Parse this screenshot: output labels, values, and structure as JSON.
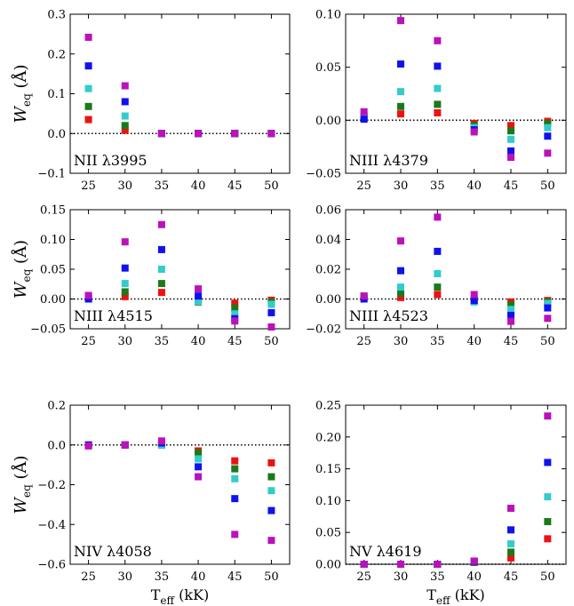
{
  "colors": {
    "red": "#ee1111",
    "green": "#1a7a1a",
    "cyan": "#33cccc",
    "blue": "#1111ee",
    "magenta": "#bb11bb"
  },
  "x_tick_labels": [
    "25",
    "30",
    "35",
    "40",
    "45",
    "50"
  ],
  "x_axis_label": {
    "main": "T",
    "sub": "eff",
    "unit": " (kK)"
  },
  "y_axis_label": {
    "main": "W",
    "sub": "eq",
    "unit": " (Å)"
  },
  "chart_data": [
    {
      "type": "scatter",
      "annotation": "NII λ3995",
      "x": [
        25,
        30,
        35,
        40,
        45,
        50
      ],
      "ylim": [
        -0.1,
        0.3
      ],
      "yticks": [
        -0.1,
        0.0,
        0.1,
        0.2,
        0.3
      ],
      "ytick_labels": [
        "−0.1",
        "0.0",
        "0.1",
        "0.2",
        "0.3"
      ],
      "xlabel_shown": false,
      "ylabel_shown": true,
      "series": [
        {
          "color_key": "red",
          "values": [
            0.035,
            0.008,
            0.0,
            0.0,
            0.0,
            0.0
          ]
        },
        {
          "color_key": "green",
          "values": [
            0.068,
            0.02,
            0.0,
            0.0,
            0.0,
            0.0
          ]
        },
        {
          "color_key": "cyan",
          "values": [
            0.113,
            0.044,
            0.0,
            0.0,
            0.0,
            0.0
          ]
        },
        {
          "color_key": "blue",
          "values": [
            0.17,
            0.08,
            0.0,
            0.0,
            0.0,
            0.0
          ]
        },
        {
          "color_key": "magenta",
          "values": [
            0.242,
            0.12,
            0.0,
            0.0,
            0.0,
            0.0
          ]
        }
      ]
    },
    {
      "type": "scatter",
      "annotation": "NIII λ4379",
      "x": [
        25,
        30,
        35,
        40,
        45,
        50
      ],
      "ylim": [
        -0.05,
        0.1
      ],
      "yticks": [
        -0.05,
        0.0,
        0.05,
        0.1
      ],
      "ytick_labels": [
        "−0.05",
        "0.00",
        "0.05",
        "0.10"
      ],
      "xlabel_shown": false,
      "ylabel_shown": false,
      "series": [
        {
          "color_key": "red",
          "values": [
            0.003,
            0.006,
            0.007,
            -0.003,
            -0.005,
            -0.001
          ]
        },
        {
          "color_key": "green",
          "values": [
            0.004,
            0.013,
            0.015,
            -0.005,
            -0.01,
            -0.003
          ]
        },
        {
          "color_key": "cyan",
          "values": [
            0.002,
            0.027,
            0.03,
            -0.007,
            -0.018,
            -0.007
          ]
        },
        {
          "color_key": "blue",
          "values": [
            0.001,
            0.053,
            0.051,
            -0.009,
            -0.029,
            -0.015
          ]
        },
        {
          "color_key": "magenta",
          "values": [
            0.008,
            0.094,
            0.075,
            -0.011,
            -0.035,
            -0.031
          ]
        }
      ]
    },
    {
      "type": "scatter",
      "annotation": "NIII λ4515",
      "x": [
        25,
        30,
        35,
        40,
        45,
        50
      ],
      "ylim": [
        -0.05,
        0.15
      ],
      "yticks": [
        -0.05,
        0.0,
        0.05,
        0.1,
        0.15
      ],
      "ytick_labels": [
        "−0.05",
        "0.00",
        "0.05",
        "0.10",
        "0.15"
      ],
      "xlabel_shown": false,
      "ylabel_shown": true,
      "series": [
        {
          "color_key": "red",
          "values": [
            0.002,
            0.004,
            0.011,
            -0.002,
            -0.007,
            -0.002
          ]
        },
        {
          "color_key": "green",
          "values": [
            0.003,
            0.012,
            0.026,
            -0.005,
            -0.015,
            -0.005
          ]
        },
        {
          "color_key": "cyan",
          "values": [
            0.001,
            0.026,
            0.05,
            -0.004,
            -0.025,
            -0.009
          ]
        },
        {
          "color_key": "blue",
          "values": [
            0.0,
            0.052,
            0.083,
            0.005,
            -0.033,
            -0.023
          ]
        },
        {
          "color_key": "magenta",
          "values": [
            0.006,
            0.096,
            0.125,
            0.017,
            -0.037,
            -0.047
          ]
        }
      ]
    },
    {
      "type": "scatter",
      "annotation": "NIII λ4523",
      "x": [
        25,
        30,
        35,
        40,
        45,
        50
      ],
      "ylim": [
        -0.02,
        0.06
      ],
      "yticks": [
        -0.02,
        0.0,
        0.02,
        0.04,
        0.06
      ],
      "ytick_labels": [
        "−0.02",
        "0.00",
        "0.02",
        "0.04",
        "0.06"
      ],
      "xlabel_shown": false,
      "ylabel_shown": false,
      "series": [
        {
          "color_key": "red",
          "values": [
            0.001,
            0.001,
            0.003,
            0.0,
            -0.002,
            -0.001
          ]
        },
        {
          "color_key": "green",
          "values": [
            0.002,
            0.004,
            0.008,
            -0.001,
            -0.004,
            -0.002
          ]
        },
        {
          "color_key": "cyan",
          "values": [
            0.001,
            0.008,
            0.017,
            -0.002,
            -0.007,
            -0.003
          ]
        },
        {
          "color_key": "blue",
          "values": [
            0.0,
            0.019,
            0.032,
            -0.001,
            -0.011,
            -0.006
          ]
        },
        {
          "color_key": "magenta",
          "values": [
            0.002,
            0.039,
            0.055,
            0.003,
            -0.015,
            -0.013
          ]
        }
      ]
    },
    {
      "type": "scatter",
      "annotation": "NIV λ4058",
      "x": [
        25,
        30,
        35,
        40,
        45,
        50
      ],
      "ylim": [
        -0.6,
        0.2
      ],
      "yticks": [
        -0.6,
        -0.4,
        -0.2,
        0.0,
        0.2
      ],
      "ytick_labels": [
        "−0.6",
        "−0.4",
        "−0.2",
        "0.0",
        "0.2"
      ],
      "xlabel_shown": true,
      "ylabel_shown": true,
      "series": [
        {
          "color_key": "red",
          "values": [
            0.0,
            0.0,
            0.0,
            -0.03,
            -0.08,
            -0.09
          ]
        },
        {
          "color_key": "green",
          "values": [
            0.0,
            0.0,
            0.0,
            -0.04,
            -0.12,
            -0.16
          ]
        },
        {
          "color_key": "cyan",
          "values": [
            0.0,
            0.0,
            0.0,
            -0.07,
            -0.17,
            -0.23
          ]
        },
        {
          "color_key": "blue",
          "values": [
            0.0,
            0.0,
            0.01,
            -0.11,
            -0.27,
            -0.33
          ]
        },
        {
          "color_key": "magenta",
          "values": [
            -0.005,
            0.0,
            0.02,
            -0.16,
            -0.45,
            -0.48
          ]
        }
      ]
    },
    {
      "type": "scatter",
      "annotation": "NV λ4619",
      "x": [
        25,
        30,
        35,
        40,
        45,
        50
      ],
      "ylim": [
        0.0,
        0.25
      ],
      "yticks": [
        0.0,
        0.05,
        0.1,
        0.15,
        0.2,
        0.25
      ],
      "ytick_labels": [
        "0.00",
        "0.05",
        "0.10",
        "0.15",
        "0.20",
        "0.25"
      ],
      "xlabel_shown": true,
      "ylabel_shown": false,
      "series": [
        {
          "color_key": "red",
          "values": [
            0.0,
            0.0,
            0.0,
            0.003,
            0.01,
            0.04
          ]
        },
        {
          "color_key": "green",
          "values": [
            0.0,
            0.0,
            0.0,
            0.003,
            0.019,
            0.067
          ]
        },
        {
          "color_key": "cyan",
          "values": [
            0.0,
            0.0,
            0.0,
            0.004,
            0.032,
            0.106
          ]
        },
        {
          "color_key": "blue",
          "values": [
            0.0,
            0.0,
            0.0,
            0.004,
            0.054,
            0.16
          ]
        },
        {
          "color_key": "magenta",
          "values": [
            0.0,
            0.0,
            0.0,
            0.005,
            0.088,
            0.233
          ]
        }
      ]
    }
  ]
}
